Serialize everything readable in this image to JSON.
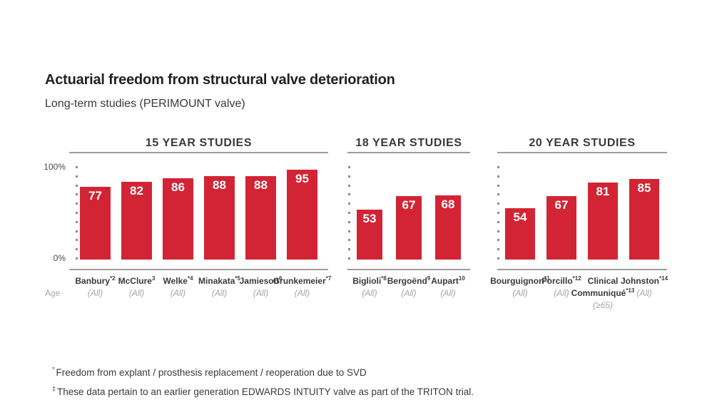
{
  "header": {
    "title": "Actuarial freedom from structural valve deterioration",
    "subtitle": "Long-term studies (PERIMOUNT valve)"
  },
  "axis": {
    "top_label": "100%",
    "bottom_label": "0%",
    "age_label": "Age"
  },
  "footnotes": [
    {
      "symbol": "*",
      "text": "Freedom from explant / prosthesis replacement / reoperation due to SVD"
    },
    {
      "symbol": "‡",
      "text": "These data pertain to an earlier generation EDWARDS INTUITY valve as part of the TRITON trial."
    }
  ],
  "colors": {
    "bar_red": "#d22435",
    "rule_gray": "#9d9d9c",
    "label_gray": "#a5a5a4",
    "text_dark": "#3a3a39",
    "value_white": "#ffffff"
  },
  "chart_data": [
    {
      "type": "bar",
      "title": "15 YEAR STUDIES",
      "categories": [
        {
          "name": "Banbury",
          "sup": "*2",
          "age": "(All)"
        },
        {
          "name": "McClure",
          "sup": "3",
          "age": "(All)"
        },
        {
          "name": "Welke",
          "sup": "*4",
          "age": "(All)"
        },
        {
          "name": "Minakata",
          "sup": "*5",
          "age": "(All)"
        },
        {
          "name": "Jamieson",
          "sup": "6",
          "age": "(All)"
        },
        {
          "name": "Grunkemeier",
          "sup": "*7",
          "age": "(All)"
        }
      ],
      "values": [
        77,
        82,
        86,
        88,
        88,
        95
      ],
      "ylim": [
        0,
        100
      ],
      "yticks": [
        "0%",
        "100%"
      ],
      "grid": "dotted-ticks-left",
      "legend": "none"
    },
    {
      "type": "bar",
      "title": "18 YEAR STUDIES",
      "categories": [
        {
          "name": "Biglioli",
          "sup": "*8",
          "age": "(All)"
        },
        {
          "name": "Bergoënd",
          "sup": "9",
          "age": "(All)"
        },
        {
          "name": "Aupart",
          "sup": "10",
          "age": "(All)"
        }
      ],
      "values": [
        53,
        67,
        68
      ],
      "ylim": [
        0,
        100
      ],
      "yticks": [],
      "grid": "dotted-ticks-left",
      "legend": "none"
    },
    {
      "type": "bar",
      "title": "20 YEAR STUDIES",
      "categories": [
        {
          "name": "Bourguignon",
          "sup": "11",
          "age": "(All)"
        },
        {
          "name": "Forcillo",
          "sup": "*12",
          "age": "(All)"
        },
        {
          "name": "Clinical",
          "sup": "",
          "name2": "Communiqué",
          "sup2": "*13",
          "age": "(≥65)"
        },
        {
          "name": "Johnston",
          "sup": "*14",
          "age": "(All)"
        }
      ],
      "values": [
        54,
        67,
        81,
        85
      ],
      "ylim": [
        0,
        100
      ],
      "yticks": [],
      "grid": "dotted-ticks-left",
      "legend": "none"
    }
  ]
}
